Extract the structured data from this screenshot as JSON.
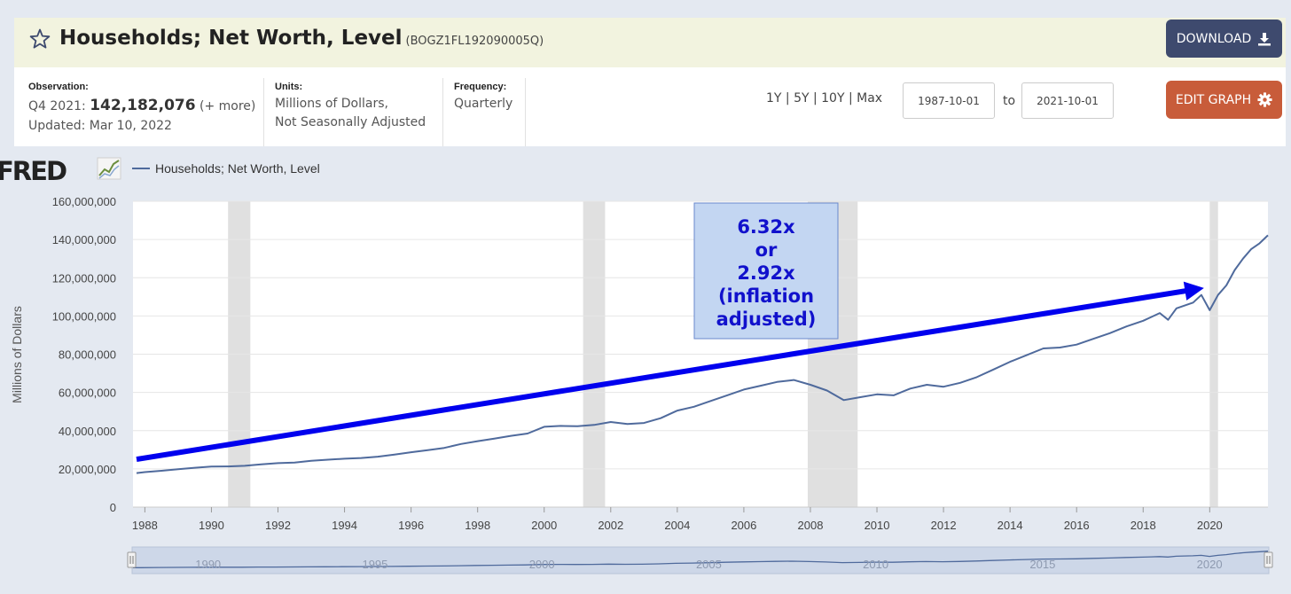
{
  "header": {
    "title": "Households; Net Worth, Level",
    "series_id": "(BOGZ1FL192090005Q)",
    "download_label": "DOWNLOAD",
    "edit_label": "EDIT GRAPH"
  },
  "info": {
    "observation_label": "Observation:",
    "obs_period": "Q4 2021:",
    "obs_value": "142,182,076",
    "obs_more": "(+ more)",
    "updated": "Updated: Mar 10, 2022",
    "units_label": "Units:",
    "units_line1": "Millions of Dollars,",
    "units_line2": "Not Seasonally Adjusted",
    "frequency_label": "Frequency:",
    "frequency_value": "Quarterly",
    "ranges": "1Y | 5Y | 10Y | Max",
    "start_date": "1987-10-01",
    "to_label": "to",
    "end_date": "2021-10-01"
  },
  "colors": {
    "series": "#4f6a9c",
    "recession": "#e0e0e0",
    "arrow": "#0000ee",
    "annotation_bg": "#c3d6f2",
    "annotation_text": "#1111cc"
  },
  "chart_data": {
    "type": "line",
    "logo": "FRED",
    "legend": "Households; Net Worth, Level",
    "ylabel": "Millions of Dollars",
    "xlabel": "",
    "ylim": [
      0,
      160000000
    ],
    "yticks": [
      0,
      20000000,
      40000000,
      60000000,
      80000000,
      100000000,
      120000000,
      140000000,
      160000000
    ],
    "ytick_labels": [
      "0",
      "20,000,000",
      "40,000,000",
      "60,000,000",
      "80,000,000",
      "100,000,000",
      "120,000,000",
      "140,000,000",
      "160,000,000"
    ],
    "xlim": [
      1987.75,
      2021.75
    ],
    "xticks": [
      1988,
      1990,
      1992,
      1994,
      1996,
      1998,
      2000,
      2002,
      2004,
      2006,
      2008,
      2010,
      2012,
      2014,
      2016,
      2018,
      2020
    ],
    "recessions": [
      [
        1990.5,
        1991.17
      ],
      [
        2001.17,
        2001.83
      ],
      [
        2007.92,
        2009.42
      ],
      [
        2020.0,
        2020.25
      ]
    ],
    "series": [
      {
        "name": "Households; Net Worth, Level",
        "x": [
          1987.75,
          1988,
          1988.5,
          1989,
          1989.5,
          1990,
          1990.5,
          1991,
          1991.5,
          1992,
          1992.5,
          1993,
          1993.5,
          1994,
          1994.5,
          1995,
          1995.5,
          1996,
          1996.5,
          1997,
          1997.5,
          1998,
          1998.5,
          1999,
          1999.5,
          2000,
          2000.5,
          2001,
          2001.5,
          2002,
          2002.5,
          2003,
          2003.5,
          2004,
          2004.5,
          2005,
          2005.5,
          2006,
          2006.5,
          2007,
          2007.5,
          2008,
          2008.5,
          2009,
          2009.5,
          2010,
          2010.5,
          2011,
          2011.5,
          2012,
          2012.5,
          2013,
          2013.5,
          2014,
          2014.5,
          2015,
          2015.5,
          2016,
          2016.5,
          2017,
          2017.5,
          2018,
          2018.25,
          2018.5,
          2018.75,
          2019,
          2019.5,
          2019.75,
          2020,
          2020.25,
          2020.5,
          2020.75,
          2021,
          2021.25,
          2021.5,
          2021.75
        ],
        "y": [
          17800000,
          18300000,
          19000000,
          19800000,
          20600000,
          21200000,
          21300000,
          21600000,
          22400000,
          23000000,
          23300000,
          24200000,
          24800000,
          25300000,
          25700000,
          26400000,
          27500000,
          28700000,
          29800000,
          31000000,
          33000000,
          34500000,
          35800000,
          37300000,
          38500000,
          42000000,
          42500000,
          42300000,
          43000000,
          44500000,
          43500000,
          44000000,
          46500000,
          50500000,
          52500000,
          55500000,
          58500000,
          61500000,
          63500000,
          65500000,
          66500000,
          64000000,
          61000000,
          56000000,
          57500000,
          59000000,
          58500000,
          62000000,
          64000000,
          63000000,
          65000000,
          68000000,
          72000000,
          76000000,
          79500000,
          83000000,
          83500000,
          85000000,
          88000000,
          91000000,
          94500000,
          97500000,
          99500000,
          101500000,
          98000000,
          104000000,
          107000000,
          111000000,
          103000000,
          111000000,
          116000000,
          124000000,
          130000000,
          135000000,
          138000000,
          142182076
        ]
      }
    ],
    "annotation": {
      "lines": [
        "6.32x",
        "or",
        "2.92x",
        "(inflation",
        "adjusted)"
      ],
      "arrow_from": [
        1987.75,
        25000000
      ],
      "arrow_to": [
        2019.6,
        114000000
      ]
    },
    "navigator_labels": [
      "1990",
      "1995",
      "2000",
      "2005",
      "2010",
      "2015",
      "2020"
    ],
    "navigator_years": [
      1990,
      1995,
      2000,
      2005,
      2010,
      2015,
      2020
    ]
  }
}
